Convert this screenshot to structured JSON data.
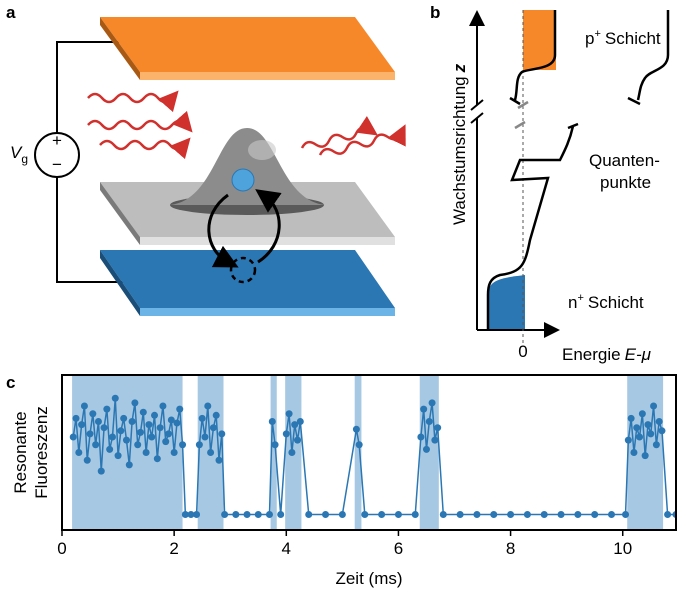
{
  "panel_a": {
    "label": "a",
    "voltage": "V",
    "voltage_sub": "g",
    "plus": "+",
    "minus": "−"
  },
  "panel_b": {
    "label": "b",
    "y_axis": "Wachstumsrichtung",
    "y_axis_symbol": "z",
    "p_layer": "p",
    "p_sup": "+",
    "p_word": "Schicht",
    "dots_1": "Quanten-",
    "dots_2": "punkte",
    "n_layer": "n",
    "n_sup": "+",
    "n_word": "Schicht",
    "zero": "0",
    "x_axis": "Energie",
    "x_axis_symbol": "E-μ"
  },
  "panel_c": {
    "label": "c"
  },
  "chart_data": {
    "type": "line",
    "xlabel": "Zeit (ms)",
    "ylabel": [
      "Resonante",
      "Fluoreszenz"
    ],
    "color": "#2a77b4",
    "shade_color": "#a6c8e2",
    "xlim": [
      0,
      10.95
    ],
    "ylim": [
      0,
      1
    ],
    "xticks": [
      0,
      2,
      4,
      6,
      8,
      10
    ],
    "bright_intervals": [
      [
        0.18,
        2.15
      ],
      [
        2.42,
        2.88
      ],
      [
        3.72,
        3.83
      ],
      [
        3.98,
        4.27
      ],
      [
        5.22,
        5.34
      ],
      [
        6.38,
        6.72
      ],
      [
        10.08,
        10.72
      ]
    ],
    "x": [
      0.2,
      0.25,
      0.3,
      0.35,
      0.4,
      0.45,
      0.5,
      0.55,
      0.6,
      0.65,
      0.7,
      0.75,
      0.8,
      0.85,
      0.9,
      0.95,
      1.0,
      1.05,
      1.1,
      1.15,
      1.2,
      1.25,
      1.3,
      1.35,
      1.4,
      1.45,
      1.5,
      1.55,
      1.6,
      1.65,
      1.7,
      1.75,
      1.8,
      1.85,
      1.9,
      1.95,
      2.0,
      2.05,
      2.1,
      2.15,
      2.2,
      2.3,
      2.4,
      2.45,
      2.5,
      2.55,
      2.6,
      2.65,
      2.7,
      2.75,
      2.8,
      2.85,
      2.9,
      3.1,
      3.3,
      3.5,
      3.7,
      3.75,
      3.8,
      3.9,
      4.0,
      4.05,
      4.1,
      4.15,
      4.2,
      4.25,
      4.4,
      4.7,
      5.0,
      5.25,
      5.3,
      5.4,
      5.7,
      6.0,
      6.3,
      6.4,
      6.45,
      6.5,
      6.55,
      6.6,
      6.65,
      6.7,
      6.8,
      7.1,
      7.4,
      7.7,
      8.0,
      8.3,
      8.6,
      8.9,
      9.2,
      9.5,
      9.8,
      10.05,
      10.1,
      10.15,
      10.2,
      10.25,
      10.3,
      10.35,
      10.4,
      10.45,
      10.5,
      10.55,
      10.6,
      10.65,
      10.7,
      10.8,
      10.95
    ],
    "values": [
      0.6,
      0.72,
      0.5,
      0.68,
      0.8,
      0.45,
      0.62,
      0.75,
      0.55,
      0.7,
      0.38,
      0.66,
      0.78,
      0.52,
      0.6,
      0.85,
      0.48,
      0.64,
      0.72,
      0.58,
      0.42,
      0.7,
      0.82,
      0.55,
      0.63,
      0.76,
      0.5,
      0.68,
      0.6,
      0.74,
      0.46,
      0.66,
      0.8,
      0.57,
      0.62,
      0.71,
      0.5,
      0.69,
      0.78,
      0.55,
      0.1,
      0.1,
      0.1,
      0.55,
      0.72,
      0.6,
      0.8,
      0.5,
      0.66,
      0.74,
      0.45,
      0.62,
      0.1,
      0.1,
      0.1,
      0.1,
      0.1,
      0.7,
      0.55,
      0.1,
      0.62,
      0.75,
      0.5,
      0.68,
      0.58,
      0.7,
      0.1,
      0.1,
      0.1,
      0.65,
      0.55,
      0.1,
      0.1,
      0.1,
      0.1,
      0.6,
      0.78,
      0.52,
      0.7,
      0.82,
      0.58,
      0.66,
      0.1,
      0.1,
      0.1,
      0.1,
      0.1,
      0.1,
      0.1,
      0.1,
      0.1,
      0.1,
      0.1,
      0.1,
      0.58,
      0.72,
      0.5,
      0.66,
      0.6,
      0.75,
      0.48,
      0.68,
      0.62,
      0.8,
      0.55,
      0.7,
      0.64,
      0.1,
      0.1
    ]
  }
}
